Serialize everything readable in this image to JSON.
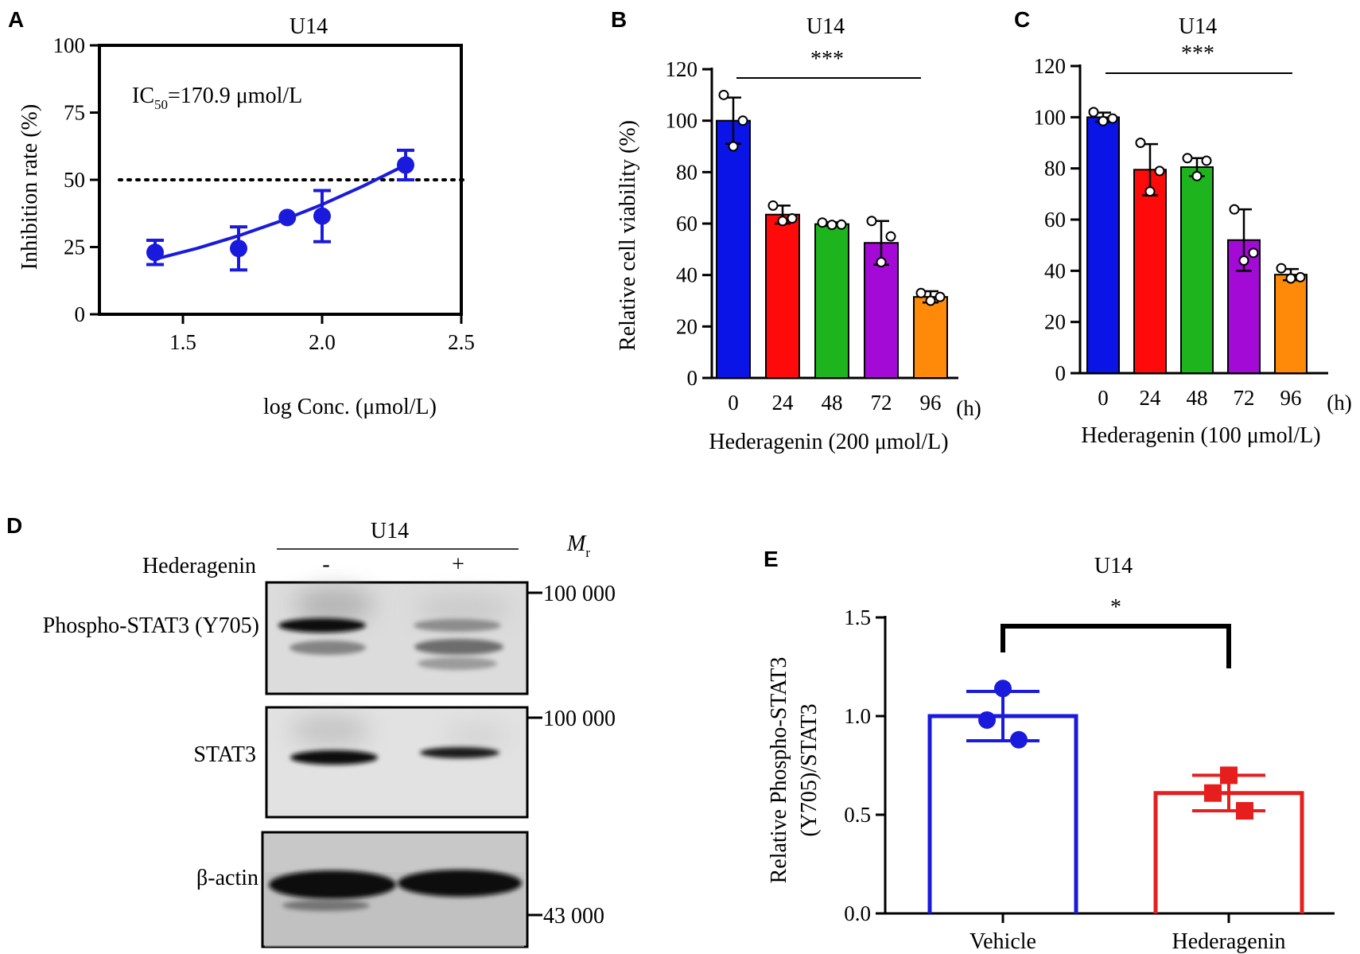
{
  "panels": {
    "A": {
      "letter": "A"
    },
    "B": {
      "letter": "B"
    },
    "C": {
      "letter": "C"
    },
    "D": {
      "letter": "D"
    },
    "E": {
      "letter": "E"
    }
  },
  "chart_data": [
    {
      "id": "A",
      "type": "scatter",
      "title": "U14",
      "xlabel": "log Conc. (μmol/L)",
      "ylabel": "Inhibition rate (%)",
      "xlim": [
        1.2,
        2.5
      ],
      "ylim": [
        0,
        100
      ],
      "xticks": [
        "1.5",
        "2.0",
        "2.5"
      ],
      "xtick_values": [
        1.5,
        2.0,
        2.5
      ],
      "yticks": [
        "0",
        "25",
        "50",
        "75",
        "100"
      ],
      "ytick_values": [
        0,
        25,
        50,
        75,
        100
      ],
      "annotation_main": "IC",
      "annotation_sub": "50",
      "annotation_rest": "=170.9 μmol/L",
      "reference_line_y": 50,
      "x": [
        1.4,
        1.7,
        1.875,
        2.0,
        2.3
      ],
      "y": [
        23,
        24.5,
        36,
        36.5,
        55.5
      ],
      "err": [
        4.5,
        8,
        0,
        9.5,
        5.5
      ],
      "fit_x": [
        1.4,
        1.55,
        1.7,
        1.85,
        2.0,
        2.15,
        2.3
      ],
      "fit_y": [
        20.5,
        24.5,
        29.2,
        34.6,
        40.8,
        47.8,
        55.5
      ],
      "color": "#1a1adc"
    },
    {
      "id": "B",
      "type": "bar",
      "title": "U14",
      "xlabel": "Hederagenin (200 μmol/L)",
      "ylabel": "Relative cell viability (%)",
      "ylim": [
        0,
        120
      ],
      "yticks": [
        "0",
        "20",
        "40",
        "60",
        "80",
        "100",
        "120"
      ],
      "ytick_values": [
        0,
        20,
        40,
        60,
        80,
        100,
        120
      ],
      "categories": [
        "0",
        "24",
        "48",
        "72",
        "96"
      ],
      "unit": "(h)",
      "values": [
        100,
        63.5,
        59.8,
        52.5,
        31.5
      ],
      "err": [
        9,
        3.5,
        0.7,
        8.5,
        2.2
      ],
      "points": [
        [
          110,
          90,
          100
        ],
        [
          67,
          61,
          62
        ],
        [
          60.4,
          59.5,
          59.6
        ],
        [
          61,
          45,
          55
        ],
        [
          33,
          30,
          31.5
        ]
      ],
      "colors": [
        "#0a14e6",
        "#ff0a0a",
        "#1eb41e",
        "#a30ad6",
        "#ff8a0a"
      ],
      "significance": "***"
    },
    {
      "id": "C",
      "type": "bar",
      "title": "U14",
      "xlabel": "Hederagenin (100 μmol/L)",
      "ylabel": "",
      "ylim": [
        0,
        120
      ],
      "yticks": [
        "0",
        "20",
        "40",
        "60",
        "80",
        "100",
        "120"
      ],
      "ytick_values": [
        0,
        20,
        40,
        60,
        80,
        100,
        120
      ],
      "categories": [
        "0",
        "24",
        "48",
        "72",
        "96"
      ],
      "unit": "(h)",
      "values": [
        100,
        79.5,
        80.5,
        52,
        38.5
      ],
      "err": [
        1.8,
        10,
        3.5,
        12,
        2.2
      ],
      "points": [
        [
          102,
          98.5,
          99.5
        ],
        [
          90,
          71,
          79
        ],
        [
          84,
          77,
          83
        ],
        [
          64,
          44,
          47
        ],
        [
          41,
          37,
          37.5
        ]
      ],
      "colors": [
        "#0a14e6",
        "#ff0a0a",
        "#1eb41e",
        "#a30ad6",
        "#ff8a0a"
      ],
      "significance": "***"
    },
    {
      "id": "E",
      "type": "bar",
      "title": "U14",
      "xlabel": "",
      "ylabel": "Relative Phospho-STAT3 (Y705)/STAT3",
      "ylabel_line1": "Relative Phospho-STAT3",
      "ylabel_line2": "(Y705)/STAT3",
      "ylim": [
        0,
        1.5
      ],
      "yticks": [
        "0.0",
        "0.5",
        "1.0",
        "1.5"
      ],
      "ytick_values": [
        0,
        0.5,
        1.0,
        1.5
      ],
      "categories": [
        "Vehicle",
        "Hederagenin"
      ],
      "values": [
        1.0,
        0.61
      ],
      "err": [
        0.125,
        0.09
      ],
      "points": [
        [
          1.14,
          0.88,
          0.98
        ],
        [
          0.7,
          0.52,
          0.61
        ]
      ],
      "colors": [
        "#1a1adc",
        "#e61e1e"
      ],
      "significance": "*"
    }
  ],
  "blot": {
    "header": "U14",
    "mr_main": "M",
    "mr_sub": "r",
    "treatment_label": "Hederagenin",
    "treatment_minus": "-",
    "treatment_plus": "+",
    "rows": [
      {
        "label": "Phospho-STAT3 (Y705)",
        "marker": "100 000"
      },
      {
        "label": "STAT3",
        "marker": "100 000"
      },
      {
        "label": "β-actin",
        "marker": "43 000"
      }
    ]
  }
}
